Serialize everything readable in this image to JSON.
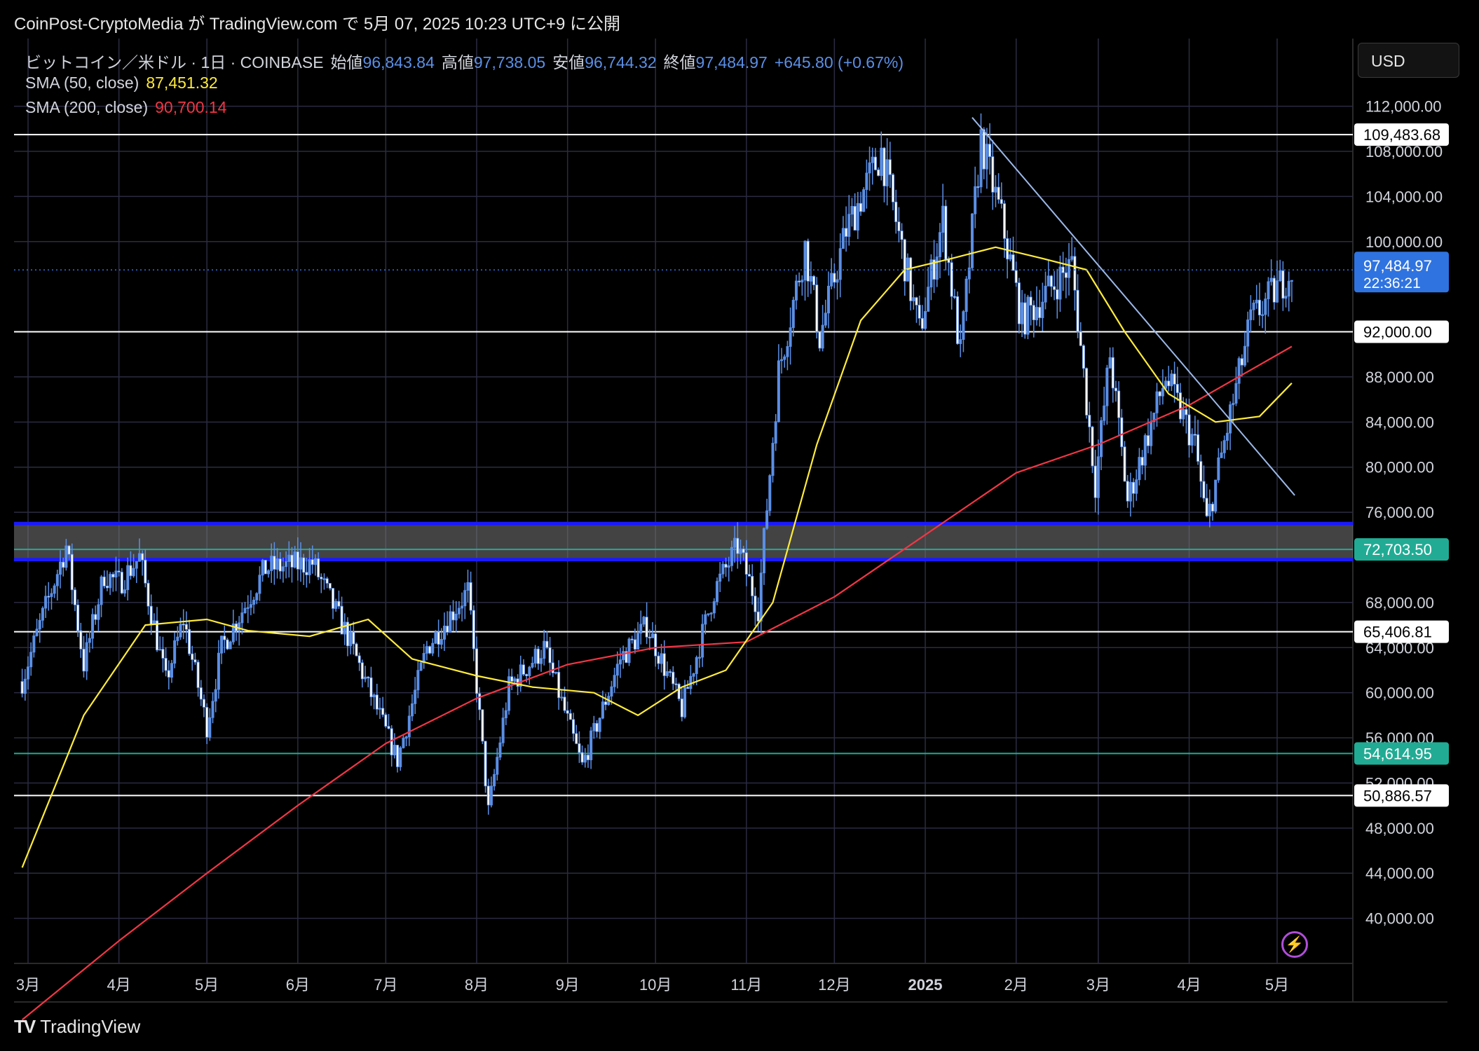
{
  "header": {
    "publisher": "CoinPost-CryptoMedia が TradingView.com で 5月 07, 2025 10:23 UTC+9 に公開"
  },
  "legend": {
    "symbol": "ビットコイン／米ドル · 1日 · COINBASE",
    "open_label": "始値",
    "open": "96,843.84",
    "high_label": "高値",
    "high": "97,738.05",
    "low_label": "安値",
    "low": "96,744.32",
    "close_label": "終値",
    "close": "97,484.97",
    "change": "+645.80 (+0.67%)",
    "sma50_label": "SMA (50, close)",
    "sma50": "87,451.32",
    "sma200_label": "SMA (200, close)",
    "sma200": "90,700.14"
  },
  "currency": "USD",
  "footer": {
    "brand": "TradingView"
  },
  "colors": {
    "candle": "#5b8fe6",
    "sma50": "#ffeb3b",
    "sma200": "#f23645",
    "zone_border": "#1a1aff",
    "green_level": "#22ab94",
    "trendline": "#9bb8e8",
    "price_label": "#2f73e0"
  },
  "chart_data": {
    "type": "candlestick",
    "title": "ビットコイン／米ドル · 1日 · COINBASE",
    "ylim": [
      36000,
      118000
    ],
    "y_ticks": [
      112000,
      108000,
      104000,
      100000,
      88000,
      84000,
      80000,
      76000,
      68000,
      64000,
      60000,
      56000,
      52000,
      48000,
      44000,
      40000
    ],
    "x_ticks": [
      "3月",
      "4月",
      "5月",
      "6月",
      "7月",
      "8月",
      "9月",
      "10月",
      "11月",
      "12月",
      "2025",
      "2月",
      "3月",
      "4月",
      "5月"
    ],
    "x_tick_dates": [
      "2024-03-01",
      "2024-04-01",
      "2024-05-01",
      "2024-06-01",
      "2024-07-01",
      "2024-08-01",
      "2024-09-01",
      "2024-10-01",
      "2024-11-01",
      "2024-12-01",
      "2025-01-01",
      "2025-02-01",
      "2025-03-01",
      "2025-04-01",
      "2025-05-01"
    ],
    "price_path": [
      [
        "2024-02-28",
        61000
      ],
      [
        "2024-03-05",
        66000
      ],
      [
        "2024-03-14",
        73000
      ],
      [
        "2024-03-20",
        62500
      ],
      [
        "2024-03-27",
        70500
      ],
      [
        "2024-04-01",
        69700
      ],
      [
        "2024-04-08",
        72000
      ],
      [
        "2024-04-17",
        61000
      ],
      [
        "2024-04-23",
        66500
      ],
      [
        "2024-05-01",
        57000
      ],
      [
        "2024-05-06",
        64000
      ],
      [
        "2024-05-21",
        71000
      ],
      [
        "2024-06-06",
        71500
      ],
      [
        "2024-06-18",
        65000
      ],
      [
        "2024-07-05",
        54000
      ],
      [
        "2024-07-15",
        64000
      ],
      [
        "2024-07-29",
        69000
      ],
      [
        "2024-08-05",
        49500
      ],
      [
        "2024-08-12",
        60500
      ],
      [
        "2024-08-24",
        64000
      ],
      [
        "2024-09-06",
        53500
      ],
      [
        "2024-09-19",
        63000
      ],
      [
        "2024-09-28",
        66000
      ],
      [
        "2024-10-10",
        58500
      ],
      [
        "2024-10-21",
        69000
      ],
      [
        "2024-10-29",
        73000
      ],
      [
        "2024-11-05",
        67500
      ],
      [
        "2024-11-12",
        88500
      ],
      [
        "2024-11-21",
        99500
      ],
      [
        "2024-11-26",
        91500
      ],
      [
        "2024-12-05",
        101000
      ],
      [
        "2024-12-17",
        108000
      ],
      [
        "2024-12-30",
        92000
      ],
      [
        "2025-01-07",
        102000
      ],
      [
        "2025-01-13",
        90000
      ],
      [
        "2025-01-20",
        109000
      ],
      [
        "2025-01-27",
        102000
      ],
      [
        "2025-02-03",
        93000
      ],
      [
        "2025-02-20",
        98000
      ],
      [
        "2025-02-28",
        78500
      ],
      [
        "2025-03-05",
        90000
      ],
      [
        "2025-03-11",
        77000
      ],
      [
        "2025-03-24",
        88000
      ],
      [
        "2025-04-03",
        82000
      ],
      [
        "2025-04-07",
        75000
      ],
      [
        "2025-04-22",
        93000
      ],
      [
        "2025-05-06",
        97484.97
      ]
    ],
    "sma50_path": [
      [
        "2024-02-28",
        44500
      ],
      [
        "2024-03-20",
        58000
      ],
      [
        "2024-04-10",
        66000
      ],
      [
        "2024-05-01",
        66500
      ],
      [
        "2024-05-15",
        65500
      ],
      [
        "2024-06-05",
        65000
      ],
      [
        "2024-06-25",
        66500
      ],
      [
        "2024-07-10",
        63000
      ],
      [
        "2024-08-01",
        61500
      ],
      [
        "2024-08-20",
        60500
      ],
      [
        "2024-09-10",
        60000
      ],
      [
        "2024-09-25",
        58000
      ],
      [
        "2024-10-10",
        60500
      ],
      [
        "2024-10-25",
        62000
      ],
      [
        "2024-11-10",
        68000
      ],
      [
        "2024-11-25",
        82000
      ],
      [
        "2024-12-10",
        93000
      ],
      [
        "2024-12-25",
        97500
      ],
      [
        "2025-01-10",
        98500
      ],
      [
        "2025-01-25",
        99500
      ],
      [
        "2025-02-10",
        98500
      ],
      [
        "2025-02-25",
        97500
      ],
      [
        "2025-03-10",
        92000
      ],
      [
        "2025-03-25",
        86500
      ],
      [
        "2025-04-10",
        84000
      ],
      [
        "2025-04-25",
        84500
      ],
      [
        "2025-05-06",
        87451.32
      ]
    ],
    "sma200_path": [
      [
        "2024-02-28",
        31000
      ],
      [
        "2024-04-01",
        38000
      ],
      [
        "2024-05-01",
        44000
      ],
      [
        "2024-06-01",
        50000
      ],
      [
        "2024-07-01",
        55500
      ],
      [
        "2024-08-01",
        59500
      ],
      [
        "2024-09-01",
        62500
      ],
      [
        "2024-10-01",
        64000
      ],
      [
        "2024-11-01",
        64500
      ],
      [
        "2024-12-01",
        68500
      ],
      [
        "2025-01-01",
        74000
      ],
      [
        "2025-02-01",
        79500
      ],
      [
        "2025-03-01",
        82000
      ],
      [
        "2025-04-01",
        85500
      ],
      [
        "2025-05-06",
        90700.14
      ]
    ],
    "trendline": [
      [
        "2025-01-17",
        111000
      ],
      [
        "2025-05-07",
        77500
      ]
    ],
    "resistance_zone": [
      71800,
      75000
    ],
    "levels": [
      {
        "value": 109483.68,
        "label": "109,483.68",
        "style": "white"
      },
      {
        "value": 92000,
        "label": "92,000.00",
        "style": "white"
      },
      {
        "value": 72703.5,
        "label": "72,703.50",
        "style": "green"
      },
      {
        "value": 65406.81,
        "label": "65,406.81",
        "style": "white"
      },
      {
        "value": 54614.95,
        "label": "54,614.95",
        "style": "green"
      },
      {
        "value": 50886.57,
        "label": "50,886.57",
        "style": "white"
      }
    ],
    "last_price": {
      "value": 97484.97,
      "label": "97,484.97",
      "countdown": "22:36:21"
    }
  }
}
